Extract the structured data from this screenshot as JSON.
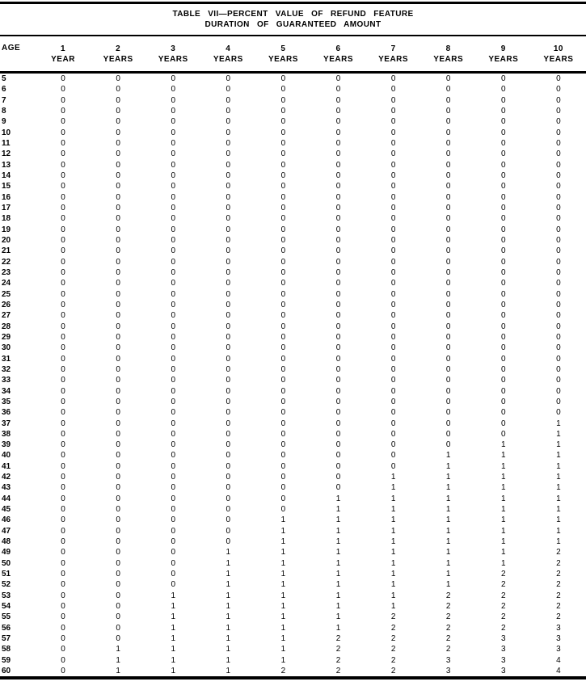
{
  "title": {
    "line1": "TABLE VII—PERCENT VALUE OF REFUND FEATURE",
    "line2": "DURATION OF GUARANTEED AMOUNT"
  },
  "colors": {
    "text": "#000000",
    "background": "#ffffff",
    "rule": "#000000"
  },
  "table": {
    "age_header": "AGE",
    "columns": [
      {
        "duration": "1",
        "unit": "YEAR"
      },
      {
        "duration": "2",
        "unit": "YEARS"
      },
      {
        "duration": "3",
        "unit": "YEARS"
      },
      {
        "duration": "4",
        "unit": "YEARS"
      },
      {
        "duration": "5",
        "unit": "YEARS"
      },
      {
        "duration": "6",
        "unit": "YEARS"
      },
      {
        "duration": "7",
        "unit": "YEARS"
      },
      {
        "duration": "8",
        "unit": "YEARS"
      },
      {
        "duration": "9",
        "unit": "YEARS"
      },
      {
        "duration": "10",
        "unit": "YEARS"
      }
    ],
    "rows": [
      {
        "age": 5,
        "values": [
          0,
          0,
          0,
          0,
          0,
          0,
          0,
          0,
          0,
          0
        ]
      },
      {
        "age": 6,
        "values": [
          0,
          0,
          0,
          0,
          0,
          0,
          0,
          0,
          0,
          0
        ]
      },
      {
        "age": 7,
        "values": [
          0,
          0,
          0,
          0,
          0,
          0,
          0,
          0,
          0,
          0
        ]
      },
      {
        "age": 8,
        "values": [
          0,
          0,
          0,
          0,
          0,
          0,
          0,
          0,
          0,
          0
        ]
      },
      {
        "age": 9,
        "values": [
          0,
          0,
          0,
          0,
          0,
          0,
          0,
          0,
          0,
          0
        ]
      },
      {
        "age": 10,
        "values": [
          0,
          0,
          0,
          0,
          0,
          0,
          0,
          0,
          0,
          0
        ]
      },
      {
        "age": 11,
        "values": [
          0,
          0,
          0,
          0,
          0,
          0,
          0,
          0,
          0,
          0
        ]
      },
      {
        "age": 12,
        "values": [
          0,
          0,
          0,
          0,
          0,
          0,
          0,
          0,
          0,
          0
        ]
      },
      {
        "age": 13,
        "values": [
          0,
          0,
          0,
          0,
          0,
          0,
          0,
          0,
          0,
          0
        ]
      },
      {
        "age": 14,
        "values": [
          0,
          0,
          0,
          0,
          0,
          0,
          0,
          0,
          0,
          0
        ]
      },
      {
        "age": 15,
        "values": [
          0,
          0,
          0,
          0,
          0,
          0,
          0,
          0,
          0,
          0
        ]
      },
      {
        "age": 16,
        "values": [
          0,
          0,
          0,
          0,
          0,
          0,
          0,
          0,
          0,
          0
        ]
      },
      {
        "age": 17,
        "values": [
          0,
          0,
          0,
          0,
          0,
          0,
          0,
          0,
          0,
          0
        ]
      },
      {
        "age": 18,
        "values": [
          0,
          0,
          0,
          0,
          0,
          0,
          0,
          0,
          0,
          0
        ]
      },
      {
        "age": 19,
        "values": [
          0,
          0,
          0,
          0,
          0,
          0,
          0,
          0,
          0,
          0
        ]
      },
      {
        "age": 20,
        "values": [
          0,
          0,
          0,
          0,
          0,
          0,
          0,
          0,
          0,
          0
        ]
      },
      {
        "age": 21,
        "values": [
          0,
          0,
          0,
          0,
          0,
          0,
          0,
          0,
          0,
          0
        ]
      },
      {
        "age": 22,
        "values": [
          0,
          0,
          0,
          0,
          0,
          0,
          0,
          0,
          0,
          0
        ]
      },
      {
        "age": 23,
        "values": [
          0,
          0,
          0,
          0,
          0,
          0,
          0,
          0,
          0,
          0
        ]
      },
      {
        "age": 24,
        "values": [
          0,
          0,
          0,
          0,
          0,
          0,
          0,
          0,
          0,
          0
        ]
      },
      {
        "age": 25,
        "values": [
          0,
          0,
          0,
          0,
          0,
          0,
          0,
          0,
          0,
          0
        ]
      },
      {
        "age": 26,
        "values": [
          0,
          0,
          0,
          0,
          0,
          0,
          0,
          0,
          0,
          0
        ]
      },
      {
        "age": 27,
        "values": [
          0,
          0,
          0,
          0,
          0,
          0,
          0,
          0,
          0,
          0
        ]
      },
      {
        "age": 28,
        "values": [
          0,
          0,
          0,
          0,
          0,
          0,
          0,
          0,
          0,
          0
        ]
      },
      {
        "age": 29,
        "values": [
          0,
          0,
          0,
          0,
          0,
          0,
          0,
          0,
          0,
          0
        ]
      },
      {
        "age": 30,
        "values": [
          0,
          0,
          0,
          0,
          0,
          0,
          0,
          0,
          0,
          0
        ]
      },
      {
        "age": 31,
        "values": [
          0,
          0,
          0,
          0,
          0,
          0,
          0,
          0,
          0,
          0
        ]
      },
      {
        "age": 32,
        "values": [
          0,
          0,
          0,
          0,
          0,
          0,
          0,
          0,
          0,
          0
        ]
      },
      {
        "age": 33,
        "values": [
          0,
          0,
          0,
          0,
          0,
          0,
          0,
          0,
          0,
          0
        ]
      },
      {
        "age": 34,
        "values": [
          0,
          0,
          0,
          0,
          0,
          0,
          0,
          0,
          0,
          0
        ]
      },
      {
        "age": 35,
        "values": [
          0,
          0,
          0,
          0,
          0,
          0,
          0,
          0,
          0,
          0
        ]
      },
      {
        "age": 36,
        "values": [
          0,
          0,
          0,
          0,
          0,
          0,
          0,
          0,
          0,
          0
        ]
      },
      {
        "age": 37,
        "values": [
          0,
          0,
          0,
          0,
          0,
          0,
          0,
          0,
          0,
          1
        ]
      },
      {
        "age": 38,
        "values": [
          0,
          0,
          0,
          0,
          0,
          0,
          0,
          0,
          0,
          1
        ]
      },
      {
        "age": 39,
        "values": [
          0,
          0,
          0,
          0,
          0,
          0,
          0,
          0,
          1,
          1
        ]
      },
      {
        "age": 40,
        "values": [
          0,
          0,
          0,
          0,
          0,
          0,
          0,
          1,
          1,
          1
        ]
      },
      {
        "age": 41,
        "values": [
          0,
          0,
          0,
          0,
          0,
          0,
          0,
          1,
          1,
          1
        ]
      },
      {
        "age": 42,
        "values": [
          0,
          0,
          0,
          0,
          0,
          0,
          1,
          1,
          1,
          1
        ]
      },
      {
        "age": 43,
        "values": [
          0,
          0,
          0,
          0,
          0,
          0,
          1,
          1,
          1,
          1
        ]
      },
      {
        "age": 44,
        "values": [
          0,
          0,
          0,
          0,
          0,
          1,
          1,
          1,
          1,
          1
        ]
      },
      {
        "age": 45,
        "values": [
          0,
          0,
          0,
          0,
          0,
          1,
          1,
          1,
          1,
          1
        ]
      },
      {
        "age": 46,
        "values": [
          0,
          0,
          0,
          0,
          1,
          1,
          1,
          1,
          1,
          1
        ]
      },
      {
        "age": 47,
        "values": [
          0,
          0,
          0,
          0,
          1,
          1,
          1,
          1,
          1,
          1
        ]
      },
      {
        "age": 48,
        "values": [
          0,
          0,
          0,
          0,
          1,
          1,
          1,
          1,
          1,
          1
        ]
      },
      {
        "age": 49,
        "values": [
          0,
          0,
          0,
          1,
          1,
          1,
          1,
          1,
          1,
          2
        ]
      },
      {
        "age": 50,
        "values": [
          0,
          0,
          0,
          1,
          1,
          1,
          1,
          1,
          1,
          2
        ]
      },
      {
        "age": 51,
        "values": [
          0,
          0,
          0,
          1,
          1,
          1,
          1,
          1,
          2,
          2
        ]
      },
      {
        "age": 52,
        "values": [
          0,
          0,
          0,
          1,
          1,
          1,
          1,
          1,
          2,
          2
        ]
      },
      {
        "age": 53,
        "values": [
          0,
          0,
          1,
          1,
          1,
          1,
          1,
          2,
          2,
          2
        ]
      },
      {
        "age": 54,
        "values": [
          0,
          0,
          1,
          1,
          1,
          1,
          1,
          2,
          2,
          2
        ]
      },
      {
        "age": 55,
        "values": [
          0,
          0,
          1,
          1,
          1,
          1,
          2,
          2,
          2,
          2
        ]
      },
      {
        "age": 56,
        "values": [
          0,
          0,
          1,
          1,
          1,
          1,
          2,
          2,
          2,
          3
        ]
      },
      {
        "age": 57,
        "values": [
          0,
          0,
          1,
          1,
          1,
          2,
          2,
          2,
          3,
          3
        ]
      },
      {
        "age": 58,
        "values": [
          0,
          1,
          1,
          1,
          1,
          2,
          2,
          2,
          3,
          3
        ]
      },
      {
        "age": 59,
        "values": [
          0,
          1,
          1,
          1,
          1,
          2,
          2,
          3,
          3,
          4
        ]
      },
      {
        "age": 60,
        "values": [
          0,
          1,
          1,
          1,
          2,
          2,
          2,
          3,
          3,
          4
        ]
      }
    ]
  }
}
